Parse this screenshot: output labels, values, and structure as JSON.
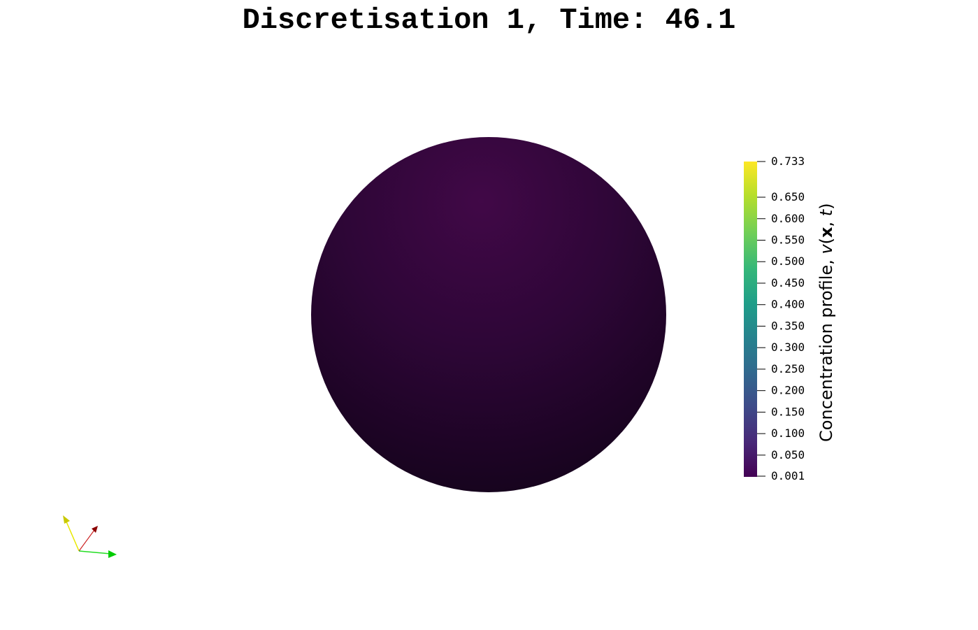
{
  "title": {
    "prefix": "Discretisation 1, Time: ",
    "time": "46.1",
    "full": "Discretisation 1, Time: 46.1"
  },
  "colorbar": {
    "title_text": "Concentration profile, ",
    "title_var": "v",
    "title_args": [
      "x",
      "t"
    ],
    "min": 0.001,
    "max": 0.733,
    "tick_labels": [
      "0.733",
      "0.650",
      "0.600",
      "0.550",
      "0.500",
      "0.450",
      "0.400",
      "0.350",
      "0.300",
      "0.250",
      "0.200",
      "0.150",
      "0.100",
      "0.050",
      "0.001"
    ],
    "colormap": "viridis",
    "colors": [
      "#440154",
      "#482878",
      "#3e4a89",
      "#31688e",
      "#26828e",
      "#1f9e89",
      "#35b779",
      "#6ece58",
      "#b5de2b",
      "#fde725"
    ]
  },
  "sphere": {
    "value": 0.001,
    "color_light": "#410847",
    "color_dark": "#13031a"
  },
  "orientation_axes": {
    "x_color": "#8b0000",
    "y_color": "#00ff00",
    "z_color": "#ffff00"
  }
}
